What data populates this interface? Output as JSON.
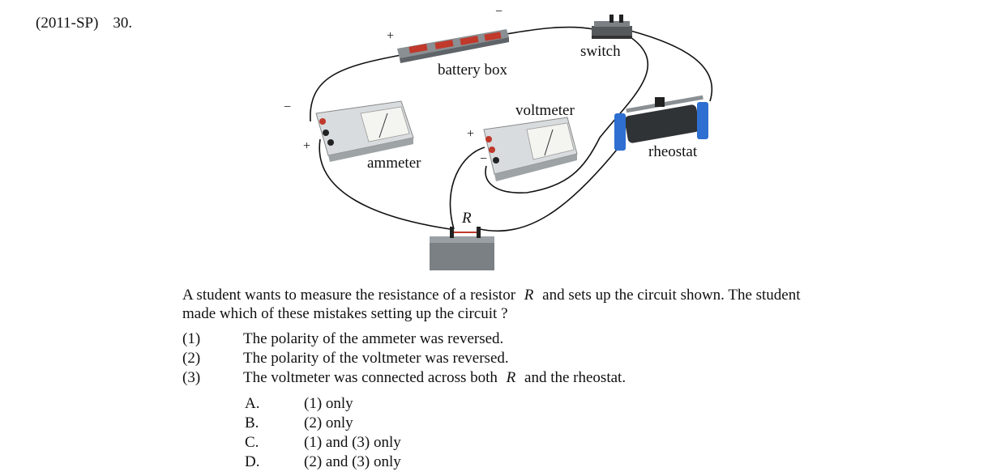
{
  "header": {
    "source": "(2011-SP)",
    "number": "30."
  },
  "diagram": {
    "labels": {
      "battery_box": "battery box",
      "switch": "switch",
      "voltmeter": "voltmeter",
      "ammeter": "ammeter",
      "rheostat": "rheostat",
      "resistor": "R"
    },
    "signs": {
      "battery_plus": "+",
      "battery_minus": "−",
      "ammeter_minus": "−",
      "ammeter_plus": "+",
      "voltmeter_plus": "+",
      "voltmeter_minus": "−"
    }
  },
  "question": {
    "stem_line1_a": "A student wants to measure the resistance of a resistor",
    "stem_R": "R",
    "stem_line1_b": "and sets up the circuit shown.  The student",
    "stem_line2": "made which of these mistakes setting up the circuit ?",
    "statements": [
      {
        "num": "(1)",
        "text": "The polarity of the ammeter was reversed."
      },
      {
        "num": "(2)",
        "text": "The polarity of the voltmeter was reversed."
      },
      {
        "num": "(3)",
        "text_a": "The voltmeter was connected across both",
        "text_R": "R",
        "text_b": "and the rheostat."
      }
    ],
    "choices": [
      {
        "letter": "A.",
        "text": "(1) only"
      },
      {
        "letter": "B.",
        "text": "(2) only"
      },
      {
        "letter": "C.",
        "text": "(1) and (3) only"
      },
      {
        "letter": "D.",
        "text": "(2) and (3) only"
      }
    ]
  }
}
